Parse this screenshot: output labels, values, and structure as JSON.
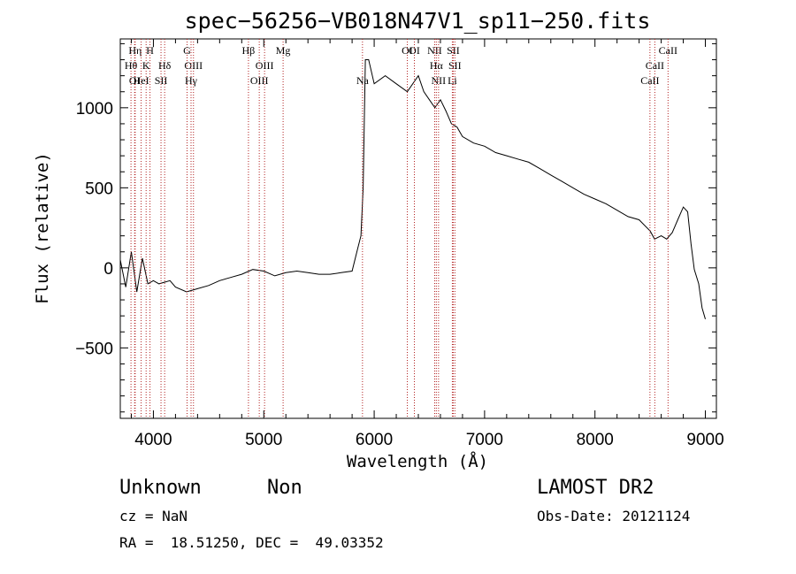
{
  "chart_data": {
    "type": "line",
    "title": "spec−56256−VB018N47V1_sp11−250.fits",
    "xlabel": "Wavelength (Å)",
    "ylabel": "Flux (relative)",
    "xlim": [
      3700,
      9100
    ],
    "ylim": [
      -940,
      1430
    ],
    "x_ticks": [
      4000,
      5000,
      6000,
      7000,
      8000,
      9000
    ],
    "x_tick_labels": [
      "4000",
      "5000",
      "6000",
      "7000",
      "8000",
      "9000"
    ],
    "y_ticks": [
      -500,
      0,
      500,
      1000
    ],
    "y_tick_labels": [
      "−500",
      "0",
      "500",
      "1000"
    ],
    "grid": false,
    "series": [
      {
        "x": [
          3700,
          3750,
          3800,
          3850,
          3900,
          3950,
          4000,
          4050,
          4100,
          4150,
          4200,
          4300,
          4400,
          4500,
          4600,
          4700,
          4800,
          4900,
          5000,
          5100,
          5200,
          5300,
          5400,
          5500,
          5600,
          5700,
          5800,
          5850,
          5880,
          5900,
          5920,
          5950,
          6000,
          6100,
          6200,
          6300,
          6400,
          6450,
          6500,
          6550,
          6600,
          6650,
          6700,
          6750,
          6800,
          6900,
          7000,
          7100,
          7200,
          7300,
          7400,
          7500,
          7600,
          7700,
          7800,
          7900,
          8000,
          8100,
          8200,
          8300,
          8400,
          8500,
          8540,
          8600,
          8650,
          8700,
          8750,
          8800,
          8840,
          8870,
          8900,
          8940,
          8970,
          9000
        ],
        "y": [
          50,
          -120,
          100,
          -150,
          60,
          -100,
          -80,
          -100,
          -90,
          -80,
          -120,
          -150,
          -130,
          -110,
          -80,
          -60,
          -40,
          -10,
          -20,
          -50,
          -30,
          -20,
          -30,
          -40,
          -40,
          -30,
          -20,
          120,
          200,
          500,
          1300,
          1300,
          1150,
          1200,
          1150,
          1100,
          1200,
          1100,
          1050,
          1000,
          1050,
          980,
          900,
          880,
          820,
          780,
          760,
          720,
          700,
          680,
          660,
          620,
          580,
          540,
          500,
          460,
          430,
          400,
          360,
          320,
          300,
          230,
          180,
          200,
          180,
          220,
          300,
          380,
          350,
          150,
          -10,
          -100,
          -250,
          -320
        ]
      }
    ],
    "line_markers": [
      {
        "label": "OI",
        "x": 3830,
        "row": 2
      },
      {
        "label": "Hθ",
        "x": 3797,
        "row": 1
      },
      {
        "label": "Hη",
        "x": 3835,
        "row": 0
      },
      {
        "label": "H",
        "x": 3969,
        "row": 0
      },
      {
        "label": "K",
        "x": 3934,
        "row": 1
      },
      {
        "label": "HeI",
        "x": 3889,
        "row": 2
      },
      {
        "label": "SII",
        "x": 4069,
        "row": 2
      },
      {
        "label": "Hδ",
        "x": 4102,
        "row": 1
      },
      {
        "label": "G",
        "x": 4305,
        "row": 0
      },
      {
        "label": "OIII",
        "x": 4363,
        "row": 1
      },
      {
        "label": "Hγ",
        "x": 4341,
        "row": 2
      },
      {
        "label": "Hβ",
        "x": 4861,
        "row": 0
      },
      {
        "label": "OIII",
        "x": 4959,
        "row": 2
      },
      {
        "label": "OIII",
        "x": 5007,
        "row": 1
      },
      {
        "label": "Mg",
        "x": 5175,
        "row": 0
      },
      {
        "label": "Na",
        "x": 5894,
        "row": 2
      },
      {
        "label": "OI",
        "x": 6300,
        "row": 0
      },
      {
        "label": "OI",
        "x": 6364,
        "row": 0
      },
      {
        "label": "NII",
        "x": 6548,
        "row": 0
      },
      {
        "label": "NII",
        "x": 6583,
        "row": 2
      },
      {
        "label": "Hα",
        "x": 6563,
        "row": 1
      },
      {
        "label": "SII",
        "x": 6716,
        "row": 0
      },
      {
        "label": "SII",
        "x": 6731,
        "row": 1
      },
      {
        "label": "Li",
        "x": 6708,
        "row": 2
      },
      {
        "label": "CaII",
        "x": 8498,
        "row": 2
      },
      {
        "label": "CaII",
        "x": 8542,
        "row": 1
      },
      {
        "label": "CaII",
        "x": 8662,
        "row": 0
      }
    ]
  },
  "info": {
    "class_label": "Unknown",
    "subclass_label": "Non",
    "survey": "LAMOST DR2",
    "cz": "cz = NaN",
    "obs_date": "Obs-Date: 20121124",
    "coords": "RA =  18.51250, DEC =  49.03352"
  }
}
